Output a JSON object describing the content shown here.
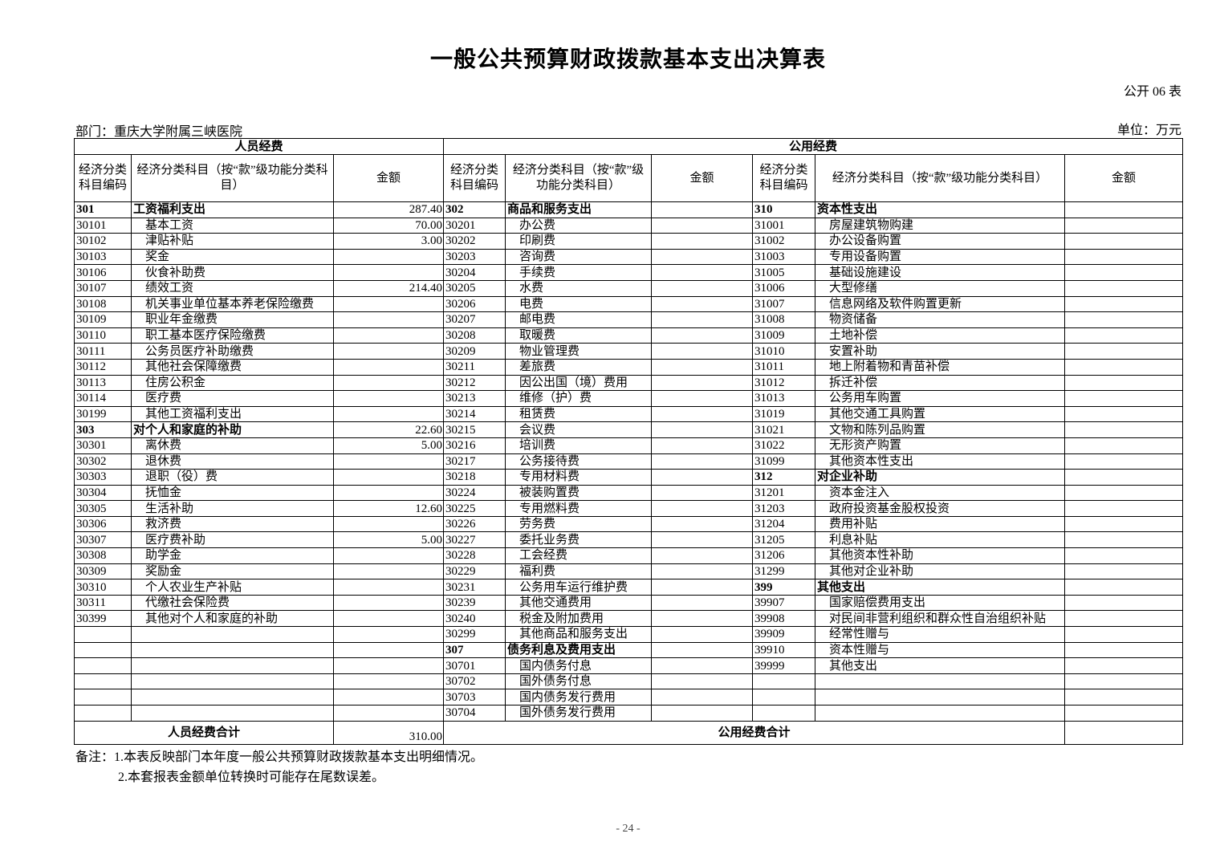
{
  "title": "一般公共预算财政拨款基本支出决算表",
  "table_no": "公开 06 表",
  "department": "部门：重庆大学附属三峡医院",
  "unit": "单位：万元",
  "headers": {
    "personnel": "人员经费",
    "public": "公用经费",
    "code": "经济分类科目编码",
    "name_left": "经济分类科目（按“款”级功能分类科目）",
    "name_mid": "经济分类科目（按“款”级功能分类科目）",
    "name_right": "经济分类科目（按“款”级功能分类科目）",
    "amount": "金额"
  },
  "rows": [
    [
      [
        "301",
        "工资福利支出",
        "287.40",
        1
      ],
      [
        "302",
        "商品和服务支出",
        "",
        1
      ],
      [
        "310",
        "资本性支出",
        "",
        1
      ]
    ],
    [
      [
        "30101",
        "基本工资",
        "70.00"
      ],
      [
        "30201",
        "办公费",
        ""
      ],
      [
        "31001",
        "房屋建筑物购建",
        ""
      ]
    ],
    [
      [
        "30102",
        "津贴补贴",
        "3.00"
      ],
      [
        "30202",
        "印刷费",
        ""
      ],
      [
        "31002",
        "办公设备购置",
        ""
      ]
    ],
    [
      [
        "30103",
        "奖金",
        ""
      ],
      [
        "30203",
        "咨询费",
        ""
      ],
      [
        "31003",
        "专用设备购置",
        ""
      ]
    ],
    [
      [
        "30106",
        "伙食补助费",
        ""
      ],
      [
        "30204",
        "手续费",
        ""
      ],
      [
        "31005",
        "基础设施建设",
        ""
      ]
    ],
    [
      [
        "30107",
        "绩效工资",
        "214.40"
      ],
      [
        "30205",
        "水费",
        ""
      ],
      [
        "31006",
        "大型修缮",
        ""
      ]
    ],
    [
      [
        "30108",
        "机关事业单位基本养老保险缴费",
        ""
      ],
      [
        "30206",
        "电费",
        ""
      ],
      [
        "31007",
        "信息网络及软件购置更新",
        ""
      ]
    ],
    [
      [
        "30109",
        "职业年金缴费",
        ""
      ],
      [
        "30207",
        "邮电费",
        ""
      ],
      [
        "31008",
        "物资储备",
        ""
      ]
    ],
    [
      [
        "30110",
        "职工基本医疗保险缴费",
        ""
      ],
      [
        "30208",
        "取暖费",
        ""
      ],
      [
        "31009",
        "土地补偿",
        ""
      ]
    ],
    [
      [
        "30111",
        "公务员医疗补助缴费",
        ""
      ],
      [
        "30209",
        "物业管理费",
        ""
      ],
      [
        "31010",
        "安置补助",
        ""
      ]
    ],
    [
      [
        "30112",
        "其他社会保障缴费",
        ""
      ],
      [
        "30211",
        "差旅费",
        ""
      ],
      [
        "31011",
        "地上附着物和青苗补偿",
        ""
      ]
    ],
    [
      [
        "30113",
        "住房公积金",
        ""
      ],
      [
        "30212",
        "因公出国（境）费用",
        ""
      ],
      [
        "31012",
        "拆迁补偿",
        ""
      ]
    ],
    [
      [
        "30114",
        "医疗费",
        ""
      ],
      [
        "30213",
        "维修（护）费",
        ""
      ],
      [
        "31013",
        "公务用车购置",
        ""
      ]
    ],
    [
      [
        "30199",
        "其他工资福利支出",
        ""
      ],
      [
        "30214",
        "租赁费",
        ""
      ],
      [
        "31019",
        "其他交通工具购置",
        ""
      ]
    ],
    [
      [
        "303",
        "对个人和家庭的补助",
        "22.60",
        1
      ],
      [
        "30215",
        "会议费",
        ""
      ],
      [
        "31021",
        "文物和陈列品购置",
        ""
      ]
    ],
    [
      [
        "30301",
        "离休费",
        "5.00"
      ],
      [
        "30216",
        "培训费",
        ""
      ],
      [
        "31022",
        "无形资产购置",
        ""
      ]
    ],
    [
      [
        "30302",
        "退休费",
        ""
      ],
      [
        "30217",
        "公务接待费",
        ""
      ],
      [
        "31099",
        "其他资本性支出",
        ""
      ]
    ],
    [
      [
        "30303",
        "退职（役）费",
        ""
      ],
      [
        "30218",
        "专用材料费",
        ""
      ],
      [
        "312",
        "对企业补助",
        "",
        1
      ]
    ],
    [
      [
        "30304",
        "抚恤金",
        ""
      ],
      [
        "30224",
        "被装购置费",
        ""
      ],
      [
        "31201",
        "资本金注入",
        ""
      ]
    ],
    [
      [
        "30305",
        "生活补助",
        "12.60"
      ],
      [
        "30225",
        "专用燃料费",
        ""
      ],
      [
        "31203",
        "政府投资基金股权投资",
        ""
      ]
    ],
    [
      [
        "30306",
        "救济费",
        ""
      ],
      [
        "30226",
        "劳务费",
        ""
      ],
      [
        "31204",
        "费用补贴",
        ""
      ]
    ],
    [
      [
        "30307",
        "医疗费补助",
        "5.00"
      ],
      [
        "30227",
        "委托业务费",
        ""
      ],
      [
        "31205",
        "利息补贴",
        ""
      ]
    ],
    [
      [
        "30308",
        "助学金",
        ""
      ],
      [
        "30228",
        "工会经费",
        ""
      ],
      [
        "31206",
        "其他资本性补助",
        ""
      ]
    ],
    [
      [
        "30309",
        "奖励金",
        ""
      ],
      [
        "30229",
        "福利费",
        ""
      ],
      [
        "31299",
        "其他对企业补助",
        ""
      ]
    ],
    [
      [
        "30310",
        "个人农业生产补贴",
        ""
      ],
      [
        "30231",
        "公务用车运行维护费",
        ""
      ],
      [
        "399",
        "其他支出",
        "",
        1
      ]
    ],
    [
      [
        "30311",
        "代缴社会保险费",
        ""
      ],
      [
        "30239",
        "其他交通费用",
        ""
      ],
      [
        "39907",
        "国家赔偿费用支出",
        ""
      ]
    ],
    [
      [
        "30399",
        "其他对个人和家庭的补助",
        ""
      ],
      [
        "30240",
        "税金及附加费用",
        ""
      ],
      [
        "39908",
        "对民间非营利组织和群众性自治组织补贴",
        ""
      ]
    ],
    [
      [
        "",
        "",
        ""
      ],
      [
        "30299",
        "其他商品和服务支出",
        ""
      ],
      [
        "39909",
        "经常性赠与",
        ""
      ]
    ],
    [
      [
        "",
        "",
        ""
      ],
      [
        "307",
        "债务利息及费用支出",
        "",
        1
      ],
      [
        "39910",
        "资本性赠与",
        ""
      ]
    ],
    [
      [
        "",
        "",
        ""
      ],
      [
        "30701",
        "国内债务付息",
        ""
      ],
      [
        "39999",
        "其他支出",
        ""
      ]
    ],
    [
      [
        "",
        "",
        ""
      ],
      [
        "30702",
        "国外债务付息",
        ""
      ],
      [
        "",
        "",
        ""
      ]
    ],
    [
      [
        "",
        "",
        ""
      ],
      [
        "30703",
        "国内债务发行费用",
        ""
      ],
      [
        "",
        "",
        ""
      ]
    ],
    [
      [
        "",
        "",
        ""
      ],
      [
        "30704",
        "国外债务发行费用",
        ""
      ],
      [
        "",
        "",
        ""
      ]
    ]
  ],
  "totals": {
    "personnel_label": "人员经费合计",
    "personnel_amount": "310.00",
    "public_label": "公用经费合计",
    "public_amount": ""
  },
  "notes": [
    "备注：1.本表反映部门本年度一般公共预算财政拨款基本支出明细情况。",
    "2.本套报表金额单位转换时可能存在尾数误差。"
  ],
  "page_number": "- 24 -"
}
